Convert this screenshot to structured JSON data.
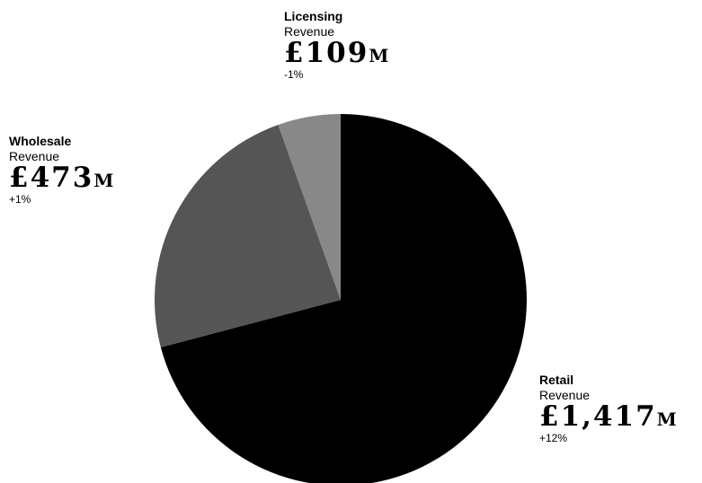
{
  "chart_data": {
    "type": "pie",
    "slices": [
      {
        "key": "retail",
        "label": "Retail",
        "metric": "Revenue",
        "value": 1417,
        "value_text": "£1,417",
        "unit": "M",
        "change": "+12%",
        "color": "#000000"
      },
      {
        "key": "wholesale",
        "label": "Wholesale",
        "metric": "Revenue",
        "value": 473,
        "value_text": "£473",
        "unit": "M",
        "change": "+1%",
        "color": "#555555"
      },
      {
        "key": "licensing",
        "label": "Licensing",
        "metric": "Revenue",
        "value": 109,
        "value_text": "£109",
        "unit": "M",
        "change": "-1%",
        "color": "#888888"
      }
    ]
  }
}
